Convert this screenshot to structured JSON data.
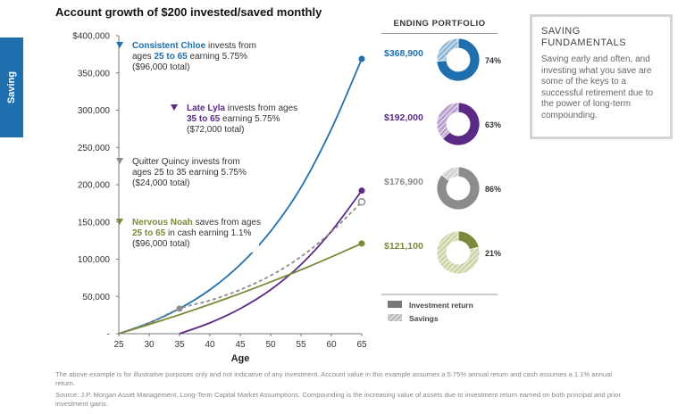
{
  "side_tab": "Saving",
  "title": "Account growth of $200 invested/saved monthly",
  "chart_data": {
    "type": "line",
    "xlabel": "Age",
    "ylabel": "",
    "xlim": [
      25,
      65
    ],
    "ylim": [
      0,
      400000
    ],
    "x_ticks": [
      25,
      30,
      35,
      40,
      45,
      50,
      55,
      60,
      65
    ],
    "y_ticks": [
      {
        "v": 0,
        "label": "-"
      },
      {
        "v": 50000,
        "label": "50,000"
      },
      {
        "v": 100000,
        "label": "100,000"
      },
      {
        "v": 150000,
        "label": "150,000"
      },
      {
        "v": 200000,
        "label": "200,000"
      },
      {
        "v": 250000,
        "label": "250,000"
      },
      {
        "v": 300000,
        "label": "300,000"
      },
      {
        "v": 350000,
        "label": "350,000"
      },
      {
        "v": 400000,
        "label": "$400,000"
      }
    ],
    "series": [
      {
        "name": "Consistent Chloe",
        "color": "#1f6fae",
        "dash": false,
        "end_marker": "filled",
        "x": [
          25,
          30,
          35,
          40,
          45,
          50,
          55,
          60,
          65
        ],
        "y": [
          0,
          14500,
          33700,
          59000,
          92800,
          137500,
          196500,
          274700,
          368900
        ]
      },
      {
        "name": "Late Lyla",
        "color": "#5b2a86",
        "dash": false,
        "end_marker": "filled",
        "x": [
          35,
          40,
          45,
          50,
          55,
          60,
          65
        ],
        "y": [
          0,
          14500,
          33700,
          59000,
          92800,
          137500,
          192000
        ]
      },
      {
        "name": "Quitter Quincy",
        "color": "#8c8c8c",
        "dash": true,
        "end_marker": "open",
        "x": [
          25,
          30,
          35,
          40,
          45,
          50,
          55,
          60,
          65
        ],
        "y": [
          0,
          14500,
          33700,
          44600,
          59000,
          78000,
          103300,
          136700,
          176900
        ]
      },
      {
        "name": "Nervous Noah",
        "color": "#7b8a3a",
        "dash": false,
        "end_marker": "filled",
        "x": [
          25,
          30,
          35,
          40,
          45,
          50,
          55,
          60,
          65
        ],
        "y": [
          0,
          12400,
          25500,
          39400,
          54000,
          69500,
          85800,
          103100,
          121100
        ]
      }
    ],
    "start_marker": {
      "x": 35,
      "y": 33700,
      "color": "#8c8c8c"
    }
  },
  "annotations": [
    {
      "marker_color": "#1f6fae",
      "lines": [
        [
          {
            "t": "Consistent Chloe",
            "c": "#1f6fae",
            "b": true
          },
          {
            "t": " invests from",
            "c": "#333",
            "b": false
          }
        ],
        [
          {
            "t": "ages ",
            "c": "#333",
            "b": false
          },
          {
            "t": "25 to 65",
            "c": "#1f6fae",
            "b": true
          },
          {
            "t": " earning 5.75%",
            "c": "#333",
            "b": false
          }
        ],
        [
          {
            "t": "($96,000 total)",
            "c": "#333",
            "b": false
          }
        ]
      ]
    },
    {
      "marker_color": "#5b2a86",
      "lines": [
        [
          {
            "t": "Late Lyla",
            "c": "#5b2a86",
            "b": true
          },
          {
            "t": " invests from ages",
            "c": "#333",
            "b": false
          }
        ],
        [
          {
            "t": "35 to 65",
            "c": "#5b2a86",
            "b": true
          },
          {
            "t": " earning 5.75%",
            "c": "#333",
            "b": false
          }
        ],
        [
          {
            "t": "($72,000 total)",
            "c": "#333",
            "b": false
          }
        ]
      ]
    },
    {
      "marker_color": "#8c8c8c",
      "lines": [
        [
          {
            "t": "Quitter Quincy",
            "c": "#333",
            "b": false
          },
          {
            "t": " invests from",
            "c": "#333",
            "b": false
          }
        ],
        [
          {
            "t": "ages 25 to 35 earning 5.75%",
            "c": "#333",
            "b": false
          }
        ],
        [
          {
            "t": "($24,000 total)",
            "c": "#333",
            "b": false
          }
        ]
      ]
    },
    {
      "marker_color": "#7b8a3a",
      "lines": [
        [
          {
            "t": "Nervous Noah",
            "c": "#7b8a3a",
            "b": true
          },
          {
            "t": " saves from ages",
            "c": "#333",
            "b": false
          }
        ],
        [
          {
            "t": "25 to 65",
            "c": "#7b8a3a",
            "b": true
          },
          {
            "t": " in cash earning 1.1%",
            "c": "#333",
            "b": false
          }
        ],
        [
          {
            "t": "($96,000 total)",
            "c": "#333",
            "b": false
          }
        ]
      ]
    }
  ],
  "ending_portfolio": {
    "title": "ENDING PORTFOLIO",
    "items": [
      {
        "value": "$368,900",
        "pct": "74%",
        "return_share": 0.74,
        "color": "#1f6fae",
        "light": "#8fb8d8"
      },
      {
        "value": "$192,000",
        "pct": "63%",
        "return_share": 0.63,
        "color": "#5b2a86",
        "light": "#b9a0cf"
      },
      {
        "value": "$176,900",
        "pct": "86%",
        "return_share": 0.86,
        "color": "#8c8c8c",
        "light": "#cfcfcf"
      },
      {
        "value": "$121,100",
        "pct": "21%",
        "return_share": 0.21,
        "color": "#7b8a3a",
        "light": "#cfd4a6"
      }
    ],
    "legend": [
      {
        "label": "Investment return",
        "pattern": "solid"
      },
      {
        "label": "Savings",
        "pattern": "hatch"
      }
    ]
  },
  "fundamentals": {
    "title": "SAVING FUNDAMENTALS",
    "text": "Saving early and often, and investing what you save are some of the keys to a successful retirement due to the power of long-term compounding."
  },
  "footnotes": [
    "The above example is for illustrative purposes only and not indicative of any investment. Account value in this example assumes a 5.75% annual return and cash assumes a 1.1% annual return.",
    "Source: J.P. Morgan Asset Management, Long-Term Capital Market Assumptions. Compounding is the increasing value of assets due to investment return earned on both principal and prior investment gains."
  ]
}
